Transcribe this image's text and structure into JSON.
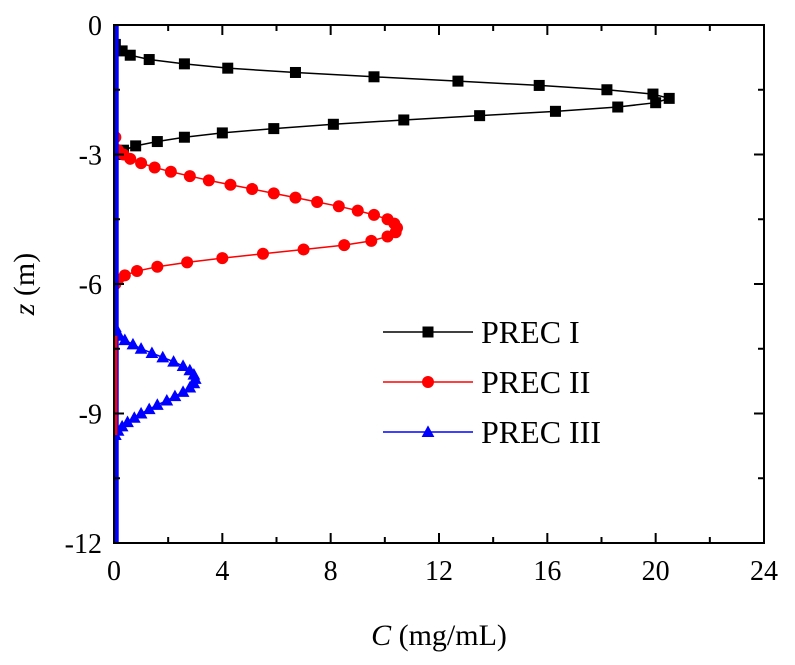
{
  "chart_data": {
    "type": "line",
    "title": "",
    "xlabel": {
      "var": "C",
      "unit": " (mg/mL)"
    },
    "ylabel": {
      "var": "z",
      "unit": " (m)"
    },
    "xlim": [
      0,
      24
    ],
    "ylim": [
      -12,
      0
    ],
    "xticks": [
      0,
      4,
      8,
      12,
      16,
      20,
      24
    ],
    "xtick_labels": [
      "0",
      "4",
      "8",
      "12",
      "16",
      "20",
      "24"
    ],
    "yticks": [
      0,
      -3,
      -6,
      -9,
      -12
    ],
    "ytick_labels": [
      "0",
      "-3",
      "-6",
      "-9",
      "-12"
    ],
    "legend_position": "center-right",
    "series": [
      {
        "name": "PREC I",
        "color": "#000000",
        "marker": "square",
        "points": [
          [
            0.05,
            -0.45
          ],
          [
            0.3,
            -0.6
          ],
          [
            0.6,
            -0.7
          ],
          [
            1.3,
            -0.8
          ],
          [
            2.6,
            -0.9
          ],
          [
            4.2,
            -1.0
          ],
          [
            6.7,
            -1.1
          ],
          [
            9.6,
            -1.2
          ],
          [
            12.7,
            -1.3
          ],
          [
            15.7,
            -1.4
          ],
          [
            18.2,
            -1.5
          ],
          [
            19.9,
            -1.6
          ],
          [
            20.5,
            -1.7
          ],
          [
            20.0,
            -1.8
          ],
          [
            18.6,
            -1.9
          ],
          [
            16.3,
            -2.0
          ],
          [
            13.5,
            -2.1
          ],
          [
            10.7,
            -2.2
          ],
          [
            8.1,
            -2.3
          ],
          [
            5.9,
            -2.4
          ],
          [
            4.0,
            -2.5
          ],
          [
            2.6,
            -2.6
          ],
          [
            1.6,
            -2.7
          ],
          [
            0.8,
            -2.8
          ],
          [
            0.35,
            -2.9
          ],
          [
            0.1,
            -3.0
          ]
        ]
      },
      {
        "name": "PREC II",
        "color": "#ff0000",
        "marker": "circle",
        "points": [
          [
            0.05,
            -2.6
          ],
          [
            0.15,
            -2.9
          ],
          [
            0.35,
            -3.0
          ],
          [
            0.6,
            -3.1
          ],
          [
            1.0,
            -3.2
          ],
          [
            1.5,
            -3.3
          ],
          [
            2.1,
            -3.4
          ],
          [
            2.8,
            -3.5
          ],
          [
            3.5,
            -3.6
          ],
          [
            4.3,
            -3.7
          ],
          [
            5.1,
            -3.8
          ],
          [
            5.9,
            -3.9
          ],
          [
            6.7,
            -4.0
          ],
          [
            7.5,
            -4.1
          ],
          [
            8.3,
            -4.2
          ],
          [
            9.0,
            -4.3
          ],
          [
            9.6,
            -4.4
          ],
          [
            10.1,
            -4.5
          ],
          [
            10.35,
            -4.6
          ],
          [
            10.45,
            -4.7
          ],
          [
            10.4,
            -4.8
          ],
          [
            10.1,
            -4.9
          ],
          [
            9.5,
            -5.0
          ],
          [
            8.5,
            -5.1
          ],
          [
            7.0,
            -5.2
          ],
          [
            5.5,
            -5.3
          ],
          [
            4.0,
            -5.4
          ],
          [
            2.7,
            -5.5
          ],
          [
            1.6,
            -5.6
          ],
          [
            0.85,
            -5.7
          ],
          [
            0.4,
            -5.8
          ],
          [
            0.15,
            -5.9
          ],
          [
            0.05,
            -6.0
          ]
        ]
      },
      {
        "name": "PREC III",
        "color": "#0000ff",
        "marker": "triangle",
        "points": [
          [
            0.05,
            -7.0
          ],
          [
            0.1,
            -7.1
          ],
          [
            0.2,
            -7.2
          ],
          [
            0.4,
            -7.3
          ],
          [
            0.7,
            -7.4
          ],
          [
            1.0,
            -7.5
          ],
          [
            1.4,
            -7.6
          ],
          [
            1.8,
            -7.7
          ],
          [
            2.2,
            -7.8
          ],
          [
            2.55,
            -7.9
          ],
          [
            2.8,
            -8.0
          ],
          [
            2.95,
            -8.1
          ],
          [
            3.0,
            -8.2
          ],
          [
            2.95,
            -8.3
          ],
          [
            2.8,
            -8.4
          ],
          [
            2.55,
            -8.5
          ],
          [
            2.25,
            -8.6
          ],
          [
            1.95,
            -8.7
          ],
          [
            1.6,
            -8.8
          ],
          [
            1.3,
            -8.9
          ],
          [
            1.0,
            -9.0
          ],
          [
            0.75,
            -9.1
          ],
          [
            0.5,
            -9.2
          ],
          [
            0.3,
            -9.3
          ],
          [
            0.15,
            -9.4
          ],
          [
            0.05,
            -9.5
          ]
        ]
      }
    ]
  }
}
